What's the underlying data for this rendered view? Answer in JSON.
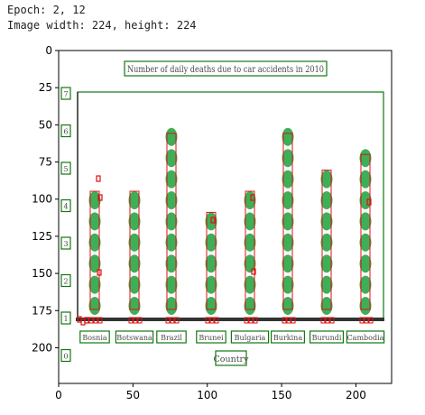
{
  "output": {
    "epoch_line": "Epoch: 2, 12",
    "dims_line": "Image width: 224, height: 224"
  },
  "axes": {
    "x_ticks": [
      "0",
      "50",
      "100",
      "150",
      "200"
    ],
    "y_ticks": [
      "0",
      "25",
      "50",
      "75",
      "100",
      "125",
      "150",
      "175",
      "200"
    ]
  },
  "image": {
    "title": "Number of daily deaths due to car accidents in 2010",
    "x_axis_label": "Country",
    "categories": [
      "Bosnia",
      "Botswana",
      "Brazil",
      "Brunei",
      "Bulgaria",
      "Burkina",
      "Burundi",
      "Cambodia"
    ],
    "y_tick_glyphs": [
      "7",
      "6",
      "5",
      "4",
      "3",
      "2",
      "1",
      "0"
    ],
    "dot_counts": [
      6,
      6,
      9,
      5,
      6,
      9,
      7,
      8
    ],
    "dot_color": "#2ea84a",
    "box_color_red": "#dd1111",
    "box_color_green": "#117711"
  }
}
